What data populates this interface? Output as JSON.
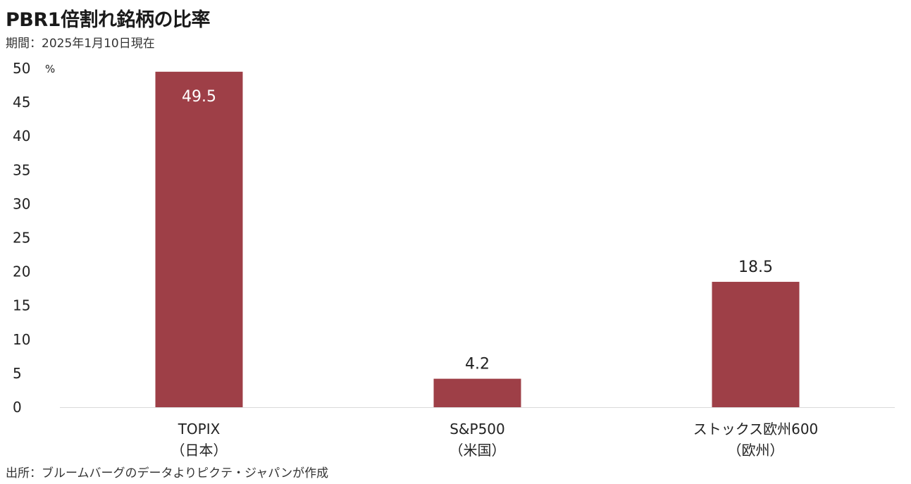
{
  "header": {
    "title": "PBR1倍割れ銘柄の比率",
    "period": "期間：2025年1月10日現在"
  },
  "footer": {
    "source": "出所：ブルームバーグのデータよりピクテ・ジャパンが作成"
  },
  "colors": {
    "bar": "#9e3f47",
    "axis": "#d9d9d9",
    "label_inside": "#ffffff",
    "label_outside": "#222222"
  },
  "chart_data": {
    "type": "bar",
    "categories": [
      [
        "TOPIX",
        "（日本）"
      ],
      [
        "S&P500",
        "（米国）"
      ],
      [
        "ストックス欧州600",
        "（欧州）"
      ]
    ],
    "values": [
      49.5,
      4.2,
      18.5
    ],
    "data_labels": [
      "49.5",
      "4.2",
      "18.5"
    ],
    "ylim": [
      0,
      50
    ],
    "yticks": [
      0,
      5,
      10,
      15,
      20,
      25,
      30,
      35,
      40,
      45,
      50
    ],
    "y_unit": "%",
    "grid": false,
    "legend": "none"
  }
}
